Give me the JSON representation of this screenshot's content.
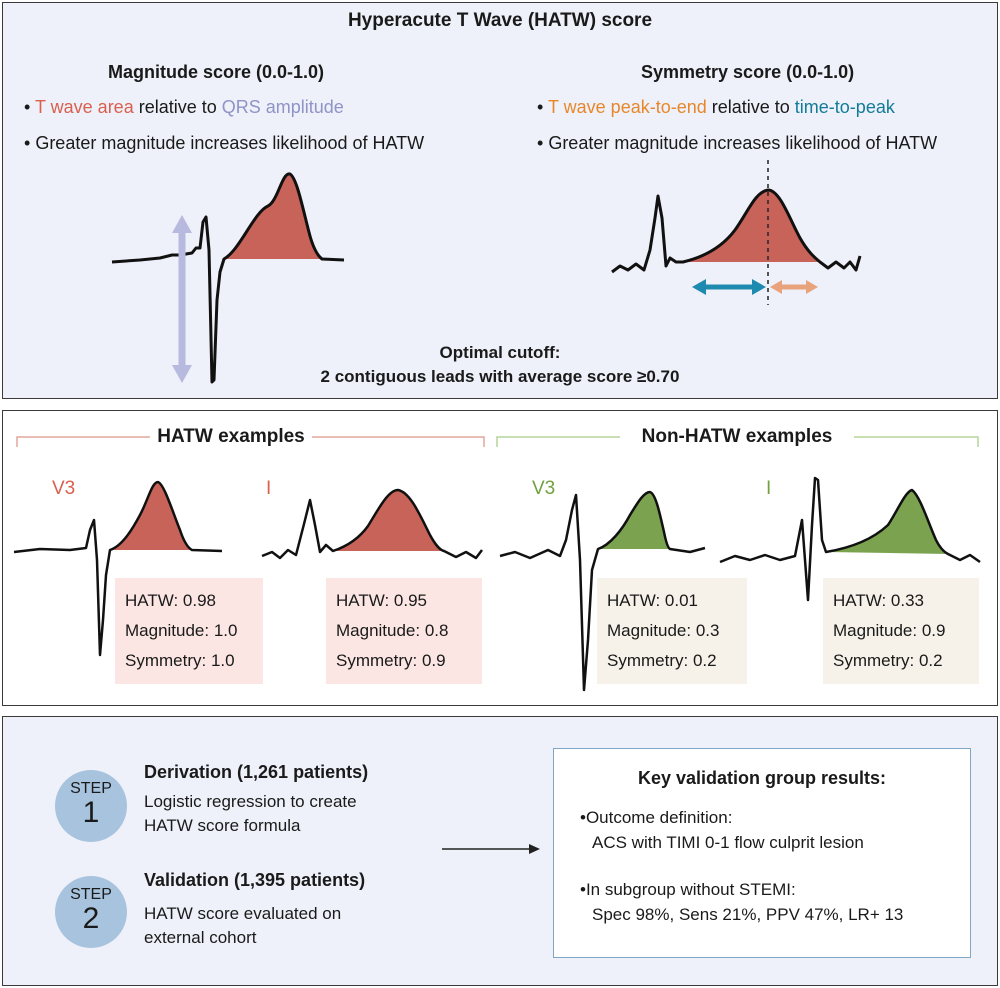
{
  "top": {
    "title": "Hyperacute T Wave (HATW) score",
    "magnitude": {
      "heading": "Magnitude score (0.0-1.0)",
      "bullet1_a": "T wave area",
      "bullet1_b": " relative to ",
      "bullet1_c": "QRS amplitude",
      "bullet2": "Greater magnitude increases likelihood of HATW"
    },
    "symmetry": {
      "heading": "Symmetry score (0.0-1.0)",
      "bullet1_a": "T wave peak-to-end",
      "bullet1_b": " relative to ",
      "bullet1_c": "time-to-peak",
      "bullet2": "Greater magnitude increases likelihood of HATW"
    },
    "cutoff_line1": "Optimal cutoff:",
    "cutoff_line2": "2 contiguous leads with average score ≥0.70"
  },
  "examples": {
    "hatw_header": "HATW examples",
    "non_hatw_header": "Non-HATW examples",
    "items": [
      {
        "lead": "V3",
        "hatw": "HATW: 0.98",
        "magnitude": "Magnitude: 1.0",
        "symmetry": "Symmetry: 1.0"
      },
      {
        "lead": "I",
        "hatw": "HATW: 0.95",
        "magnitude": "Magnitude: 0.8",
        "symmetry": "Symmetry: 0.9"
      },
      {
        "lead": "V3",
        "hatw": "HATW: 0.01",
        "magnitude": "Magnitude: 0.3",
        "symmetry": "Symmetry: 0.2"
      },
      {
        "lead": "I",
        "hatw": "HATW: 0.33",
        "magnitude": "Magnitude: 0.9",
        "symmetry": "Symmetry: 0.2"
      }
    ]
  },
  "steps": [
    {
      "label": "STEP",
      "number": "1",
      "title": "Derivation (1,261 patients)",
      "line1": "Logistic regression to create",
      "line2": "HATW score formula"
    },
    {
      "label": "STEP",
      "number": "2",
      "title": "Validation (1,395 patients)",
      "line1": "HATW score evaluated on",
      "line2": "external cohort"
    }
  ],
  "key_results": {
    "title": "Key validation group results:",
    "bullet1_line1": "Outcome definition:",
    "bullet1_line2": "ACS with TIMI 0-1 flow culprit lesion",
    "bullet2_line1": "In subgroup without STEMI:",
    "bullet2_line2": "Spec 98%, Sens 21%, PPV 47%, LR+ 13"
  },
  "colors": {
    "red": "#d9604f",
    "purple": "#8f93c6",
    "orange": "#e8872a",
    "teal": "#127b97",
    "green": "#72a040",
    "t_fill_red": "#c8635a",
    "t_fill_green": "#7ba34f"
  }
}
